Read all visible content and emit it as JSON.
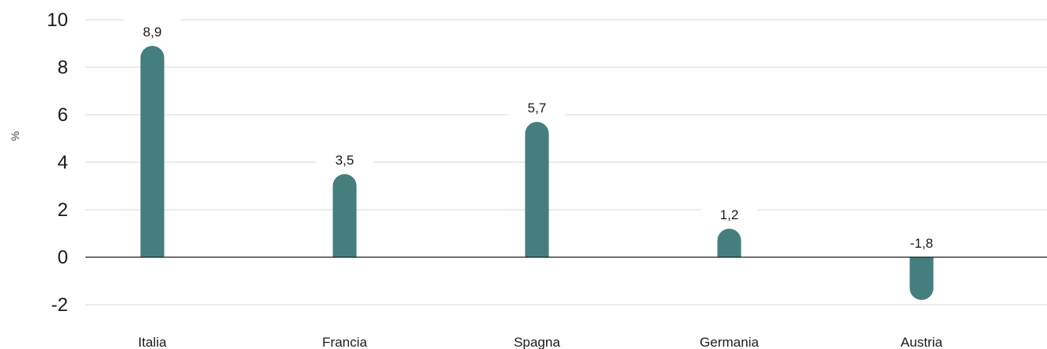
{
  "chart_data": {
    "type": "bar",
    "categories": [
      "Italia",
      "Francia",
      "Spagna",
      "Germania",
      "Austria"
    ],
    "values": [
      8.9,
      3.5,
      5.7,
      1.2,
      -1.8
    ],
    "value_labels": [
      "8,9",
      "3,5",
      "5,7",
      "1,2",
      "-1,8"
    ],
    "ylabel": "%",
    "ylim": [
      -2,
      10
    ],
    "yticks": [
      -2,
      0,
      2,
      4,
      6,
      8,
      10
    ],
    "ytick_labels": [
      "-2",
      "0",
      "2",
      "4",
      "6",
      "8",
      "10"
    ],
    "grid": true,
    "legend": "none",
    "bar_style": "rounded-end"
  },
  "colors": {
    "bar": "#447f7e",
    "grid": "#d9d9d9",
    "zero_line": "#1a1a1a",
    "text": "#1a1a1a"
  }
}
